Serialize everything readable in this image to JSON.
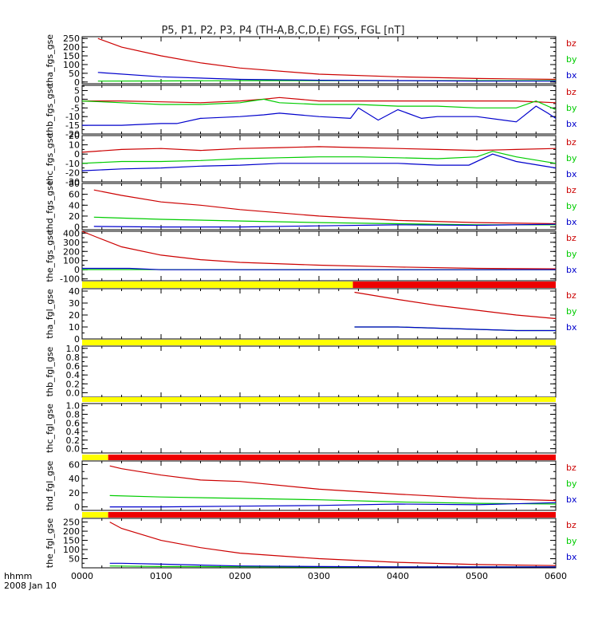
{
  "title": "P5, P1, P2, P3, P4 (TH-A,B,C,D,E) FGS, FGL [nT]",
  "colors": {
    "bx": "#0000cc",
    "by": "#00cc00",
    "bz": "#cc0000",
    "bar_yellow": "#ffff00",
    "bar_red": "#ee0000",
    "axis": "#000000"
  },
  "time_axis": {
    "label_line1": "hhmm",
    "label_line2": "2008 Jan 10",
    "ticks": [
      "0000",
      "0100",
      "0200",
      "0300",
      "0400",
      "0500",
      "0600"
    ],
    "range_hours": [
      0,
      6
    ]
  },
  "chart_data": [
    {
      "type": "line",
      "ylabel": "tha_fgs_gse",
      "ylim": [
        -10,
        260
      ],
      "yticks": [
        0,
        50,
        100,
        150,
        200,
        250
      ],
      "tick_labels": [
        "0",
        "50",
        "100",
        "150",
        "200",
        "250"
      ],
      "legend": [
        "bz",
        "by",
        "bx"
      ],
      "series": [
        {
          "name": "bz",
          "color": "bz",
          "x": [
            0.2,
            0.5,
            1.0,
            1.5,
            2.0,
            3.0,
            4.0,
            5.0,
            6.0
          ],
          "y": [
            250,
            200,
            150,
            110,
            80,
            45,
            30,
            20,
            15
          ]
        },
        {
          "name": "by",
          "color": "by",
          "x": [
            0.2,
            1.0,
            2.0,
            3.0,
            4.0,
            5.0,
            6.0
          ],
          "y": [
            5,
            6,
            8,
            8,
            8,
            8,
            8
          ]
        },
        {
          "name": "bx",
          "color": "bx",
          "x": [
            0.2,
            1.0,
            2.0,
            3.0,
            4.0,
            5.0,
            6.0
          ],
          "y": [
            55,
            30,
            15,
            10,
            8,
            5,
            5
          ]
        }
      ]
    },
    {
      "type": "line",
      "ylabel": "thb_fgs_gse",
      "ylim": [
        -20,
        8
      ],
      "yticks": [
        -20,
        -15,
        -10,
        -5,
        0,
        5
      ],
      "tick_labels": [
        "-20",
        "-15",
        "-10",
        "-5",
        "0",
        "5"
      ],
      "legend": [
        "bz",
        "by",
        "bx"
      ],
      "series": [
        {
          "name": "bz",
          "color": "bz",
          "x": [
            0,
            0.5,
            1.0,
            1.5,
            2.0,
            2.3,
            2.5,
            3.0,
            3.5,
            4.0,
            4.5,
            5.0,
            5.5,
            6.0
          ],
          "y": [
            -1,
            -1,
            -1.5,
            -2,
            -1,
            0,
            1,
            -1,
            -1,
            -1,
            -1,
            -1,
            -1,
            -2
          ]
        },
        {
          "name": "by",
          "color": "by",
          "x": [
            0,
            0.5,
            1.0,
            1.5,
            2.0,
            2.3,
            2.5,
            3.0,
            3.5,
            4.0,
            4.5,
            5.0,
            5.5,
            5.75,
            6.0
          ],
          "y": [
            -1,
            -2,
            -3,
            -3,
            -2,
            0,
            -2,
            -3,
            -3,
            -4,
            -4,
            -5,
            -5,
            -1,
            -6
          ]
        },
        {
          "name": "bx",
          "color": "bx",
          "x": [
            0,
            0.5,
            1.0,
            1.2,
            1.5,
            2.0,
            2.3,
            2.5,
            3.0,
            3.4,
            3.5,
            3.75,
            4.0,
            4.3,
            4.5,
            5.0,
            5.5,
            5.75,
            5.9,
            6.0
          ],
          "y": [
            -15,
            -15,
            -14,
            -14,
            -11,
            -10,
            -9,
            -8,
            -10,
            -11,
            -5,
            -12,
            -6,
            -11,
            -10,
            -10,
            -13,
            -4,
            -8,
            -11
          ]
        }
      ]
    },
    {
      "type": "line",
      "ylabel": "thc_fgs_gse",
      "ylim": [
        -30,
        20
      ],
      "yticks": [
        -30,
        -20,
        -10,
        0,
        10,
        20
      ],
      "tick_labels": [
        "-30",
        "-20",
        "-10",
        "0",
        "10",
        "20"
      ],
      "legend": [
        "bz",
        "by",
        "bx"
      ],
      "series": [
        {
          "name": "bz",
          "color": "bz",
          "x": [
            0,
            0.5,
            1.0,
            1.5,
            2.0,
            2.5,
            3.0,
            3.5,
            4.0,
            4.5,
            5.0,
            5.5,
            6.0
          ],
          "y": [
            2,
            5,
            6,
            4,
            6,
            7,
            8,
            7,
            6,
            5,
            4,
            5,
            6
          ]
        },
        {
          "name": "by",
          "color": "by",
          "x": [
            0,
            0.5,
            1.0,
            1.5,
            2.0,
            2.5,
            3.0,
            3.5,
            4.0,
            4.5,
            5.0,
            5.2,
            5.5,
            6.0
          ],
          "y": [
            -10,
            -8,
            -8,
            -7,
            -5,
            -4,
            -3,
            -3,
            -4,
            -5,
            -3,
            3,
            -3,
            -10
          ]
        },
        {
          "name": "bx",
          "color": "bx",
          "x": [
            0,
            0.5,
            1.0,
            1.5,
            2.0,
            2.5,
            3.0,
            3.5,
            4.0,
            4.5,
            4.9,
            5.2,
            5.5,
            6.0
          ],
          "y": [
            -18,
            -16,
            -15,
            -13,
            -12,
            -10,
            -10,
            -10,
            -10,
            -12,
            -12,
            0,
            -8,
            -15
          ]
        }
      ]
    },
    {
      "type": "line",
      "ylabel": "thd_fgs_gse",
      "ylim": [
        -5,
        80
      ],
      "yticks": [
        0,
        20,
        40,
        60,
        80
      ],
      "tick_labels": [
        "0",
        "20",
        "40",
        "60",
        "80"
      ],
      "legend": [
        "bz",
        "by",
        "bx"
      ],
      "series": [
        {
          "name": "bz",
          "color": "bz",
          "x": [
            0.15,
            0.5,
            1.0,
            1.5,
            2.0,
            3.0,
            4.0,
            5.0,
            6.0
          ],
          "y": [
            68,
            58,
            46,
            40,
            32,
            20,
            12,
            8,
            6
          ]
        },
        {
          "name": "by",
          "color": "by",
          "x": [
            0.15,
            1.0,
            2.0,
            3.0,
            4.0,
            5.0,
            6.0
          ],
          "y": [
            18,
            14,
            11,
            8,
            6,
            4,
            4
          ]
        },
        {
          "name": "bx",
          "color": "bx",
          "x": [
            0.15,
            1.0,
            2.0,
            3.0,
            4.0,
            5.0,
            6.0
          ],
          "y": [
            1,
            0,
            0,
            2,
            4,
            3,
            5
          ]
        }
      ]
    },
    {
      "type": "line",
      "ylabel": "the_fgs_gse",
      "ylim": [
        -120,
        420
      ],
      "yticks": [
        -100,
        0,
        100,
        200,
        300,
        400
      ],
      "tick_labels": [
        "-100",
        "0",
        "100",
        "200",
        "300",
        "400"
      ],
      "legend": [
        "bz",
        "by",
        "bx"
      ],
      "series": [
        {
          "name": "bz",
          "color": "bz",
          "x": [
            0,
            0.2,
            0.5,
            1.0,
            1.5,
            2.0,
            3.0,
            4.0,
            5.0,
            6.0
          ],
          "y": [
            420,
            350,
            250,
            160,
            110,
            80,
            50,
            30,
            15,
            10
          ]
        },
        {
          "name": "by",
          "color": "by",
          "x": [
            0,
            6.0
          ],
          "y": [
            2,
            0
          ]
        },
        {
          "name": "bx",
          "color": "bx",
          "x": [
            0,
            0.6,
            1.0,
            3.0,
            6.0
          ],
          "y": [
            15,
            15,
            0,
            0,
            0
          ]
        }
      ]
    },
    {
      "type": "line",
      "ylabel": "tha_fgl_gse",
      "ylim": [
        0,
        42
      ],
      "yticks": [
        0,
        10,
        20,
        30,
        40
      ],
      "tick_labels": [
        "0",
        "10",
        "20",
        "30",
        "40"
      ],
      "legend": [
        "bz",
        "by",
        "bx"
      ],
      "bar": [
        {
          "from": 0,
          "to": 3.43,
          "color": "bar_yellow"
        },
        {
          "from": 3.43,
          "to": 6.0,
          "color": "bar_red"
        }
      ],
      "series": [
        {
          "name": "bz",
          "color": "bz",
          "x": [
            3.45,
            4.0,
            4.5,
            5.0,
            5.5,
            6.0
          ],
          "y": [
            39,
            33,
            28,
            24,
            20,
            17
          ]
        },
        {
          "name": "by",
          "color": "by",
          "x": [
            3.45,
            4.0,
            4.5,
            5.0,
            5.5,
            6.0
          ],
          "y": [
            10,
            10,
            9,
            8,
            7,
            7
          ]
        },
        {
          "name": "bx",
          "color": "bx",
          "x": [
            3.45,
            4.0,
            4.5,
            5.0,
            5.5,
            6.0
          ],
          "y": [
            10,
            10,
            9,
            8,
            7,
            7
          ]
        }
      ]
    },
    {
      "type": "line",
      "ylabel": "thb_fgl_gse",
      "ylim": [
        -0.1,
        1.05
      ],
      "yticks": [
        0,
        0.2,
        0.4,
        0.6,
        0.8,
        1.0
      ],
      "tick_labels": [
        "0.0",
        "0.2",
        "0.4",
        "0.6",
        "0.8",
        "1.0"
      ],
      "legend": [],
      "bar": [
        {
          "from": 0,
          "to": 6.0,
          "color": "bar_yellow"
        }
      ],
      "series": []
    },
    {
      "type": "line",
      "ylabel": "thc_fgl_gse",
      "ylim": [
        -0.1,
        1.05
      ],
      "yticks": [
        0,
        0.2,
        0.4,
        0.6,
        0.8,
        1.0
      ],
      "tick_labels": [
        "0.0",
        "0.2",
        "0.4",
        "0.6",
        "0.8",
        "1.0"
      ],
      "legend": [],
      "bar": [
        {
          "from": 0,
          "to": 6.0,
          "color": "bar_yellow"
        }
      ],
      "series": []
    },
    {
      "type": "line",
      "ylabel": "thd_fgl_gse",
      "ylim": [
        -5,
        65
      ],
      "yticks": [
        0,
        20,
        40,
        60
      ],
      "tick_labels": [
        "0",
        "20",
        "40",
        "60"
      ],
      "legend": [
        "bz",
        "by",
        "bx"
      ],
      "bar": [
        {
          "from": 0,
          "to": 0.33,
          "color": "bar_yellow"
        },
        {
          "from": 0.33,
          "to": 6.0,
          "color": "bar_red"
        }
      ],
      "series": [
        {
          "name": "bz",
          "color": "bz",
          "x": [
            0.35,
            0.5,
            1.0,
            1.5,
            2.0,
            3.0,
            4.0,
            5.0,
            6.0
          ],
          "y": [
            58,
            54,
            45,
            38,
            36,
            25,
            18,
            12,
            9
          ]
        },
        {
          "name": "by",
          "color": "by",
          "x": [
            0.35,
            1.0,
            2.0,
            3.0,
            4.0,
            5.0,
            6.0
          ],
          "y": [
            16,
            14,
            12,
            10,
            7,
            5,
            4
          ]
        },
        {
          "name": "bx",
          "color": "bx",
          "x": [
            0.35,
            1.0,
            2.0,
            3.0,
            4.0,
            5.0,
            6.0
          ],
          "y": [
            0,
            0,
            1,
            2,
            4,
            3,
            6
          ]
        }
      ]
    },
    {
      "type": "line",
      "ylabel": "the_fgl_gse",
      "ylim": [
        0,
        270
      ],
      "yticks": [
        50,
        100,
        150,
        200,
        250
      ],
      "tick_labels": [
        "50",
        "100",
        "150",
        "200",
        "250"
      ],
      "legend": [
        "bz",
        "by",
        "bx"
      ],
      "bar": [
        {
          "from": 0,
          "to": 0.33,
          "color": "bar_yellow"
        },
        {
          "from": 0.33,
          "to": 6.0,
          "color": "bar_red"
        }
      ],
      "series": [
        {
          "name": "bz",
          "color": "bz",
          "x": [
            0.35,
            0.5,
            1.0,
            1.5,
            2.0,
            3.0,
            4.0,
            5.0,
            6.0
          ],
          "y": [
            250,
            215,
            150,
            110,
            80,
            50,
            30,
            18,
            12
          ]
        },
        {
          "name": "by",
          "color": "by",
          "x": [
            0.35,
            1.0,
            2.0,
            3.0,
            4.0,
            5.0,
            6.0
          ],
          "y": [
            10,
            7,
            6,
            5,
            5,
            5,
            5
          ]
        },
        {
          "name": "bx",
          "color": "bx",
          "x": [
            0.35,
            0.5,
            1.0,
            2.0,
            3.0,
            4.0,
            5.0,
            6.0
          ],
          "y": [
            25,
            25,
            20,
            10,
            7,
            5,
            5,
            5
          ]
        }
      ]
    }
  ]
}
